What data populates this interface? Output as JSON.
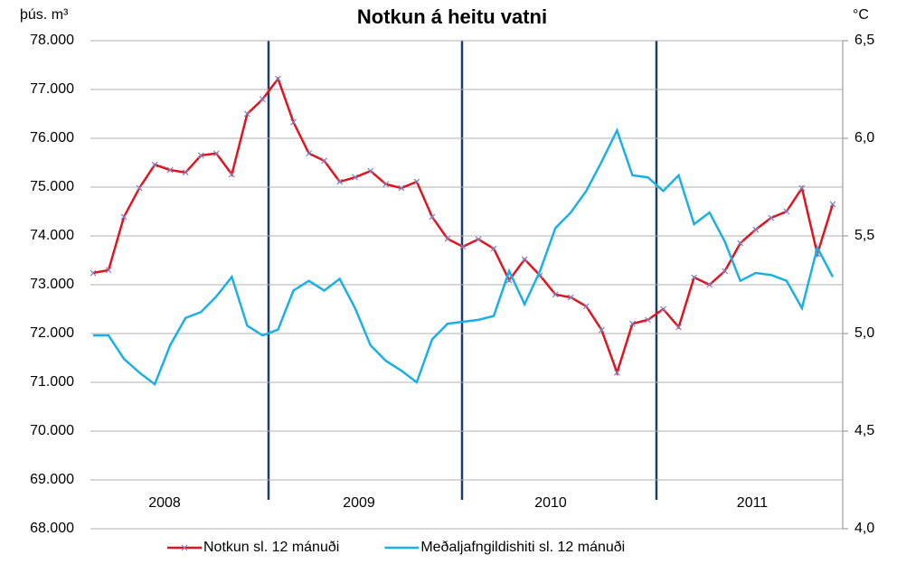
{
  "chart_data": {
    "type": "line",
    "title": "Notkun á heitu vatni",
    "y_label": "þús. m³",
    "y2_label": "°C",
    "year_labels": [
      "2008",
      "2009",
      "2010",
      "2011"
    ],
    "ylim": [
      68,
      78
    ],
    "yticks": [
      {
        "value": 68,
        "label": "68.000"
      },
      {
        "value": 69,
        "label": "69.000"
      },
      {
        "value": 70,
        "label": "70.000"
      },
      {
        "value": 71,
        "label": "71.000"
      },
      {
        "value": 72,
        "label": "72.000"
      },
      {
        "value": 73,
        "label": "73.000"
      },
      {
        "value": 74,
        "label": "74.000"
      },
      {
        "value": 75,
        "label": "75.000"
      },
      {
        "value": 76,
        "label": "76.000"
      },
      {
        "value": 77,
        "label": "77.000"
      },
      {
        "value": 78,
        "label": "78.000"
      }
    ],
    "y2lim": [
      4.0,
      6.5
    ],
    "y2ticks": [
      {
        "value": 4.0,
        "label": "4,0"
      },
      {
        "value": 4.5,
        "label": "4,5"
      },
      {
        "value": 5.0,
        "label": "5,0"
      },
      {
        "value": 5.5,
        "label": "5,5"
      },
      {
        "value": 6.0,
        "label": "6,0"
      },
      {
        "value": 6.5,
        "label": "6,5"
      }
    ],
    "grid": true,
    "legend": "bottom",
    "series": [
      {
        "name": "Notkun sl. 12 mánuði",
        "color": "#e0141e",
        "marker_color": "#8080c0",
        "values": [
          73.24,
          73.3,
          74.39,
          74.98,
          75.46,
          75.35,
          75.3,
          75.65,
          75.69,
          75.26,
          76.5,
          76.8,
          77.22,
          76.33,
          75.69,
          75.54,
          75.11,
          75.2,
          75.33,
          75.06,
          74.98,
          75.11,
          74.39,
          73.94,
          73.78,
          73.93,
          73.74,
          73.09,
          73.52,
          73.19,
          72.8,
          72.74,
          72.56,
          72.07,
          71.2,
          72.2,
          72.28,
          72.5,
          72.13,
          73.15,
          73.0,
          73.28,
          73.85,
          74.13,
          74.37,
          74.5,
          74.98,
          73.63,
          74.65
        ]
      },
      {
        "name": "Meðaljafngildishiti sl. 12 mánuði",
        "color": "#1ab0e6",
        "axis": "y2",
        "values": [
          4.99,
          4.99,
          4.87,
          4.8,
          4.74,
          4.94,
          5.08,
          5.11,
          5.19,
          5.29,
          5.04,
          4.99,
          5.02,
          5.22,
          5.27,
          5.22,
          5.28,
          5.13,
          4.94,
          4.86,
          4.81,
          4.75,
          4.97,
          5.05,
          5.06,
          5.07,
          5.09,
          5.32,
          5.15,
          5.32,
          5.54,
          5.62,
          5.73,
          5.88,
          6.04,
          5.81,
          5.8,
          5.73,
          5.81,
          5.56,
          5.62,
          5.47,
          5.27,
          5.31,
          5.3,
          5.27,
          5.13,
          5.44,
          5.29
        ]
      }
    ]
  }
}
